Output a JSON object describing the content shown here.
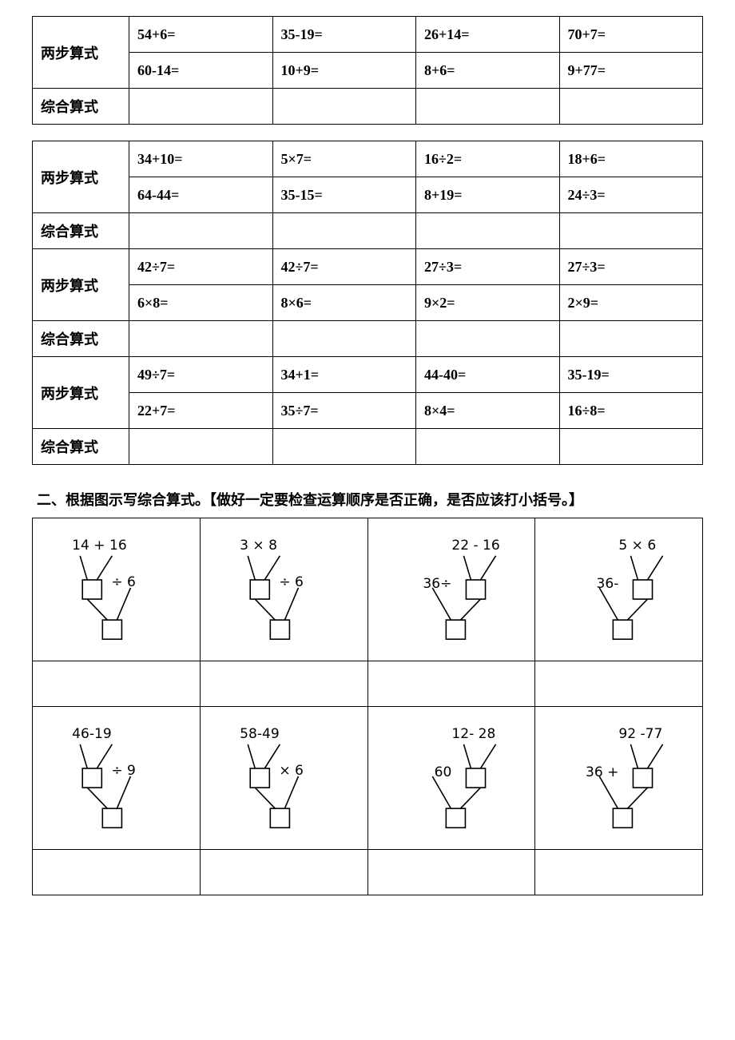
{
  "labels": {
    "two_step": "两步算式",
    "combined": "综合算式"
  },
  "table1": {
    "rows": [
      [
        "54+6=",
        "35-19=",
        "26+14=",
        "70+7="
      ],
      [
        "60-14=",
        "10+9=",
        "8+6=",
        "9+77="
      ]
    ]
  },
  "table2": {
    "groups": [
      {
        "rows": [
          [
            "34+10=",
            "5×7=",
            "16÷2=",
            "18+6="
          ],
          [
            "64-44=",
            "35-15=",
            "8+19=",
            "24÷3="
          ]
        ]
      },
      {
        "rows": [
          [
            "42÷7=",
            "42÷7=",
            "27÷3=",
            "27÷3="
          ],
          [
            "6×8=",
            "8×6=",
            "9×2=",
            "2×9="
          ]
        ]
      },
      {
        "rows": [
          [
            "49÷7=",
            "34+1=",
            "44-40=",
            "35-19="
          ],
          [
            "22+7=",
            "35÷7=",
            "8×4=",
            "16÷8="
          ]
        ]
      }
    ]
  },
  "heading_2": "二、根据图示写综合算式。【做好一定要检查运算顺序是否正确，是否应该打小括号。】",
  "diagrams": {
    "row1": [
      {
        "top": "14 + 16",
        "side": "÷ 6",
        "layout": "right"
      },
      {
        "top": "3  ×  8",
        "side": "÷ 6",
        "layout": "right"
      },
      {
        "top": "22 - 16",
        "side": "36÷",
        "layout": "left"
      },
      {
        "top": "5  ×  6",
        "side": "36-",
        "layout": "left"
      }
    ],
    "row2": [
      {
        "top": "46-19",
        "side": "÷ 9",
        "layout": "right"
      },
      {
        "top": "58-49",
        "side": "× 6",
        "layout": "right"
      },
      {
        "top": "12- 28",
        "side": "60",
        "layout": "left"
      },
      {
        "top": "92 -77",
        "side": "36 +",
        "layout": "left"
      }
    ]
  },
  "style": {
    "border_color": "#000000",
    "bg_color": "#ffffff",
    "text_color": "#000000",
    "cell_fontsize": 18,
    "diagram_box_size": 24,
    "diagram_stroke": "#000000",
    "diagram_stroke_width": 1.6
  }
}
